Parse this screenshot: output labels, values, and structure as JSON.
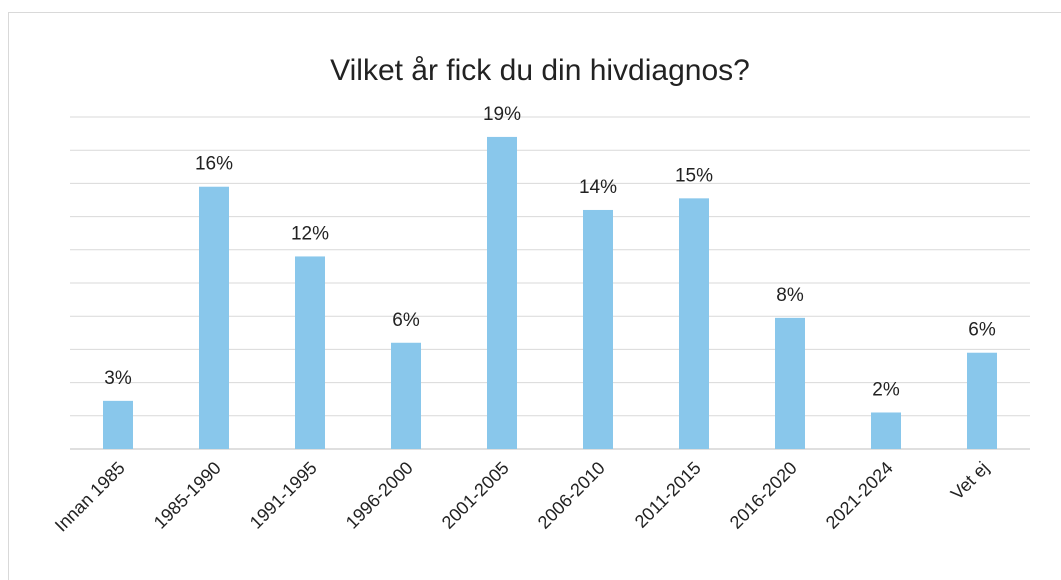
{
  "chart_data": {
    "type": "bar",
    "title": "Vilket år fick du din hivdiagnos?",
    "categories": [
      "Innan 1985",
      "1985-1990",
      "1991-1995",
      "1996-2000",
      "2001-2005",
      "2006-2010",
      "2011-2015",
      "2016-2020",
      "2021-2024",
      "Vet ej"
    ],
    "values": [
      2.9,
      15.8,
      11.6,
      6.4,
      18.8,
      14.4,
      15.1,
      7.9,
      2.2,
      5.8
    ],
    "value_labels": [
      "3%",
      "16%",
      "12%",
      "6%",
      "19%",
      "14%",
      "15%",
      "8%",
      "2%",
      "6%"
    ],
    "color": "#89c7eb",
    "ylim": [
      0,
      20
    ],
    "yticks": [
      0,
      2,
      4,
      6,
      8,
      10,
      12,
      14,
      16,
      18,
      20
    ],
    "grid": true
  }
}
